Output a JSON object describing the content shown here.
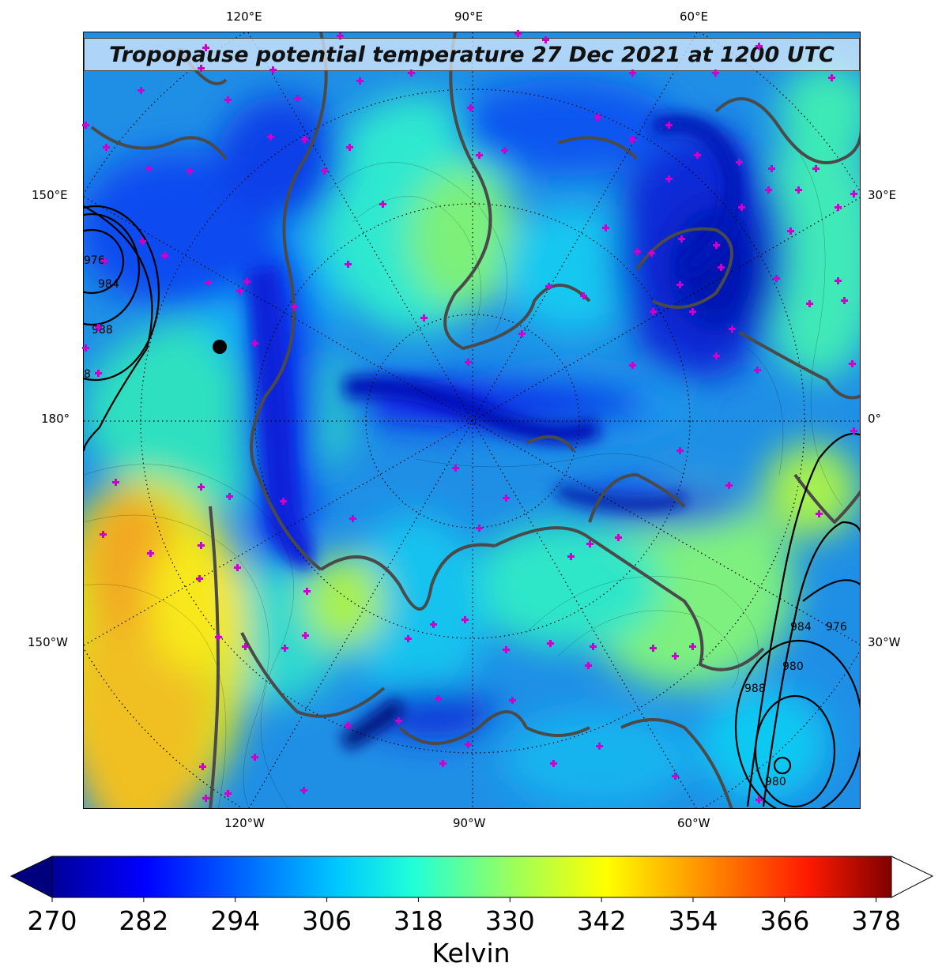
{
  "title": "Tropopause potential temperature 27 Dec 2021 at 1200 UTC",
  "map": {
    "field": "Tropopause potential temperature",
    "projection": "north polar stereographic",
    "pressure_contours": {
      "labels_left": [
        "976",
        "984",
        "988",
        "8"
      ],
      "labels_right": [
        "984",
        "976",
        "980",
        "988",
        "980"
      ]
    },
    "longitude_labels": {
      "top": [
        "120°E",
        "90°E",
        "60°E"
      ],
      "bottom": [
        "120°W",
        "90°W",
        "60°W"
      ],
      "left": [
        "150°E",
        "180°",
        "150°W"
      ],
      "right": [
        "30°E",
        "0°",
        "30°W"
      ]
    },
    "marker_color": "#cc00cc",
    "coastline_color": "#4a4a4a"
  },
  "colorbar": {
    "label": "Kelvin",
    "ticks": [
      "270",
      "282",
      "294",
      "306",
      "318",
      "330",
      "342",
      "354",
      "366",
      "378"
    ],
    "range": [
      270,
      380
    ],
    "extend": "both",
    "colormap": "jet",
    "colors": [
      "#00007f",
      "#0000ff",
      "#007fff",
      "#00ffff",
      "#7fff7f",
      "#ffff00",
      "#ff7f00",
      "#ff0000",
      "#7f0000"
    ]
  }
}
